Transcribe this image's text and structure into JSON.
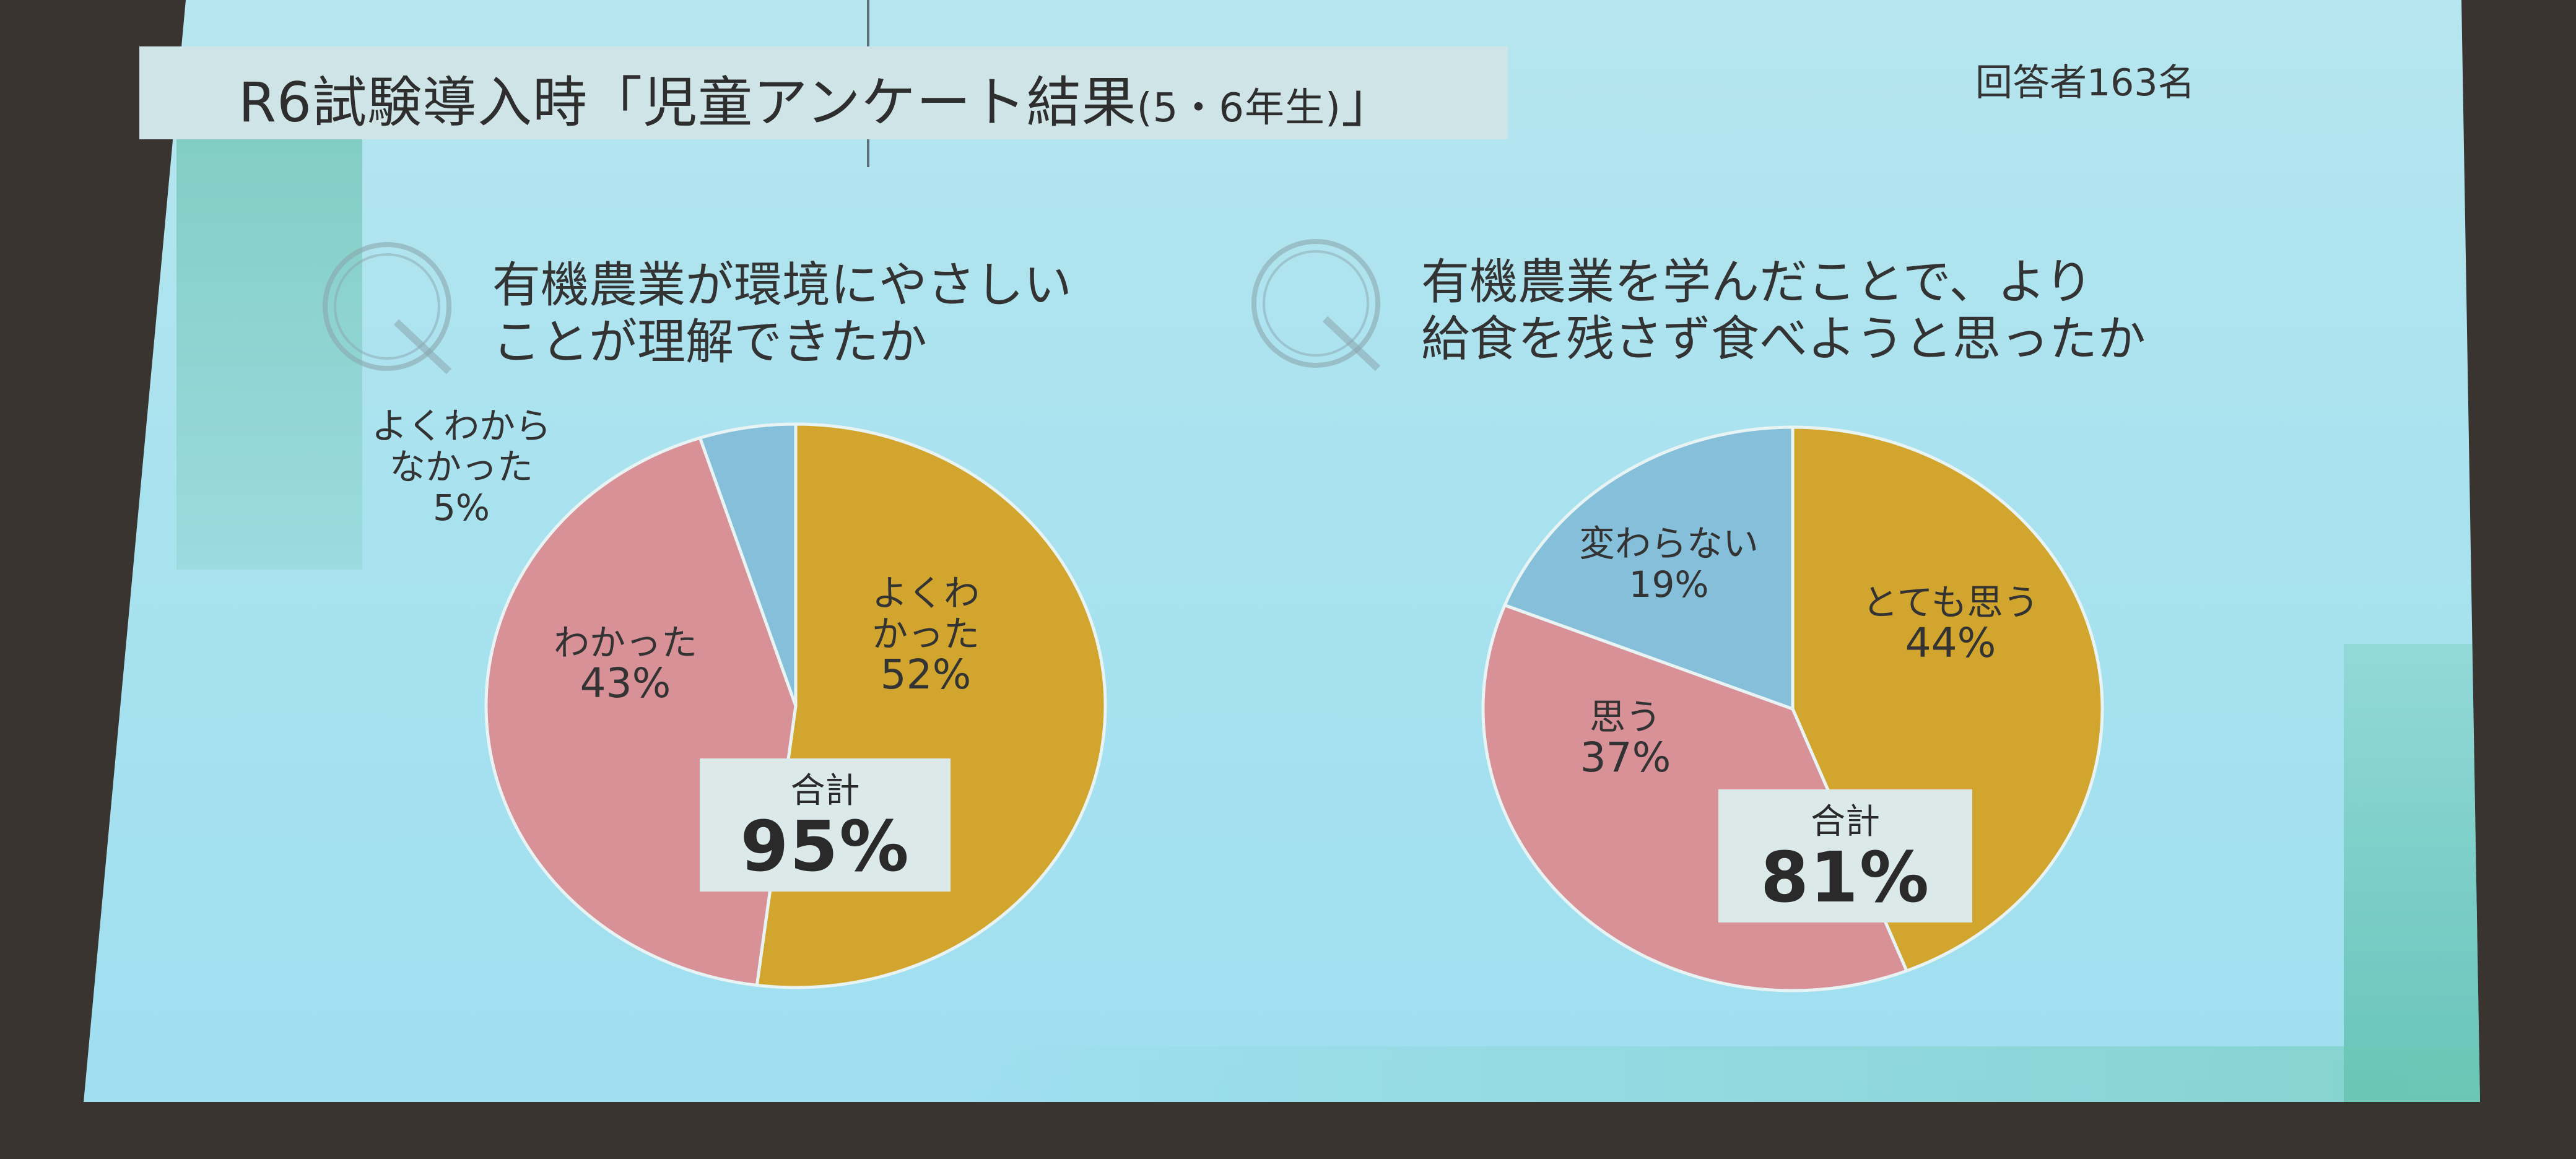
{
  "title": {
    "main": "R6試験導入時「児童アンケート結果",
    "sub": "(5・6年生)",
    "close": "」"
  },
  "respondents": "回答者163名",
  "colors": {
    "gold": "#d2a62e",
    "pink": "#d99198",
    "blue": "#86bfd9"
  },
  "chart_data": [
    {
      "type": "pie",
      "question_line1": "有機農業が環境にやさしい",
      "question_line2": "ことが理解できたか",
      "slices": [
        {
          "label_line1": "よくわ",
          "label_line2": "かった",
          "value": 52,
          "value_text": "52%",
          "color": "#d2a62e"
        },
        {
          "label_line1": "わかった",
          "label_line2": "",
          "value": 43,
          "value_text": "43%",
          "color": "#d99198"
        },
        {
          "label_line1": "よくわから",
          "label_line2": "なかった",
          "value": 5,
          "value_text": "5%",
          "color": "#86bfd9"
        }
      ],
      "total_label": "合計",
      "total_value": "95%"
    },
    {
      "type": "pie",
      "question_line1": "有機農業を学んだことで、より",
      "question_line2": "給食を残さず食べようと思ったか",
      "slices": [
        {
          "label_line1": "とても思う",
          "label_line2": "",
          "value": 44,
          "value_text": "44%",
          "color": "#d2a62e"
        },
        {
          "label_line1": "思う",
          "label_line2": "",
          "value": 37,
          "value_text": "37%",
          "color": "#d99198"
        },
        {
          "label_line1": "変わらない",
          "label_line2": "",
          "value": 19,
          "value_text": "19%",
          "color": "#86bfd9"
        }
      ],
      "total_label": "合計",
      "total_value": "81%"
    }
  ]
}
